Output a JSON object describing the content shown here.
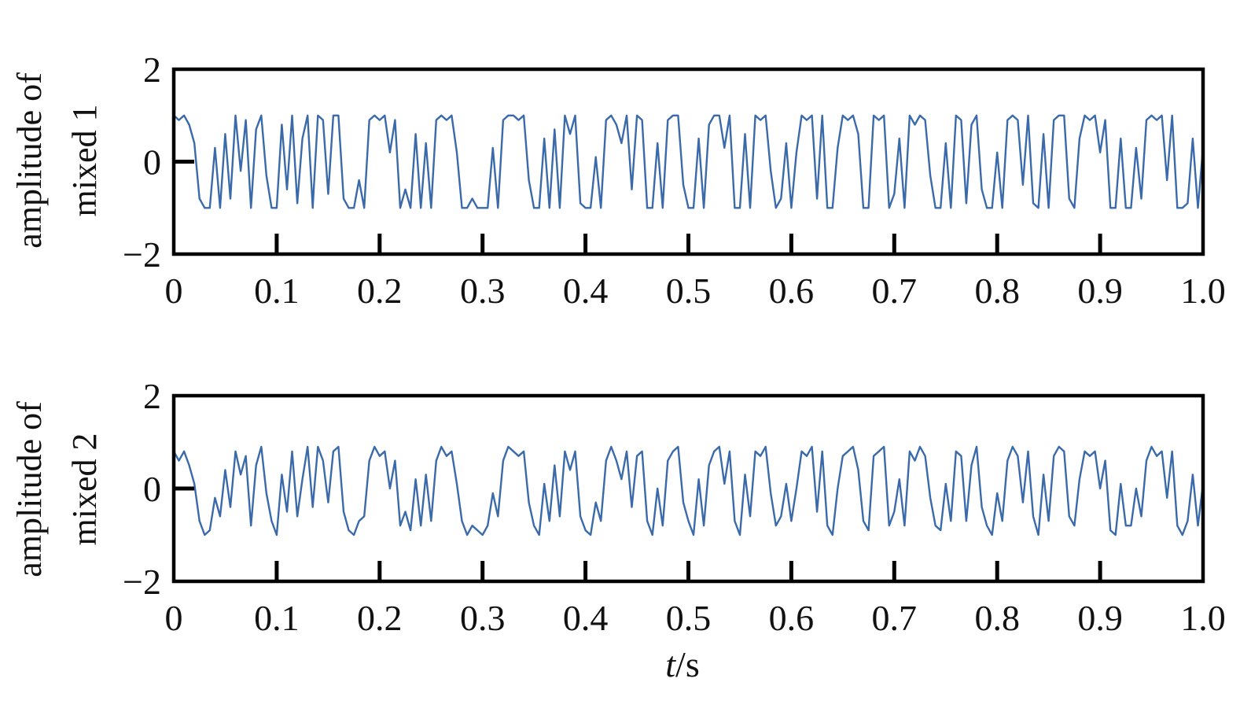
{
  "figure": {
    "xlabel_var": "t",
    "xlabel_unit": "/s"
  },
  "chart_data": [
    {
      "type": "line",
      "ylabel": [
        "amplitude of",
        "mixed 1"
      ],
      "xlim": [
        0,
        1.0
      ],
      "ylim": [
        -2,
        2
      ],
      "xticks": [
        0,
        0.1,
        0.2,
        0.3,
        0.4,
        0.5,
        0.6,
        0.7,
        0.8,
        0.9,
        1.0
      ],
      "xticklabels": [
        "0",
        "0.1",
        "0.2",
        "0.3",
        "0.4",
        "0.5",
        "0.6",
        "0.7",
        "0.8",
        "0.9",
        "1.0"
      ],
      "yticks": [
        -2,
        0,
        2
      ],
      "yticklabels": [
        "−2",
        "0",
        "2"
      ],
      "color": "#3a6aaa",
      "series": [
        {
          "x": [
            0,
            0.005,
            0.01,
            0.015,
            0.02,
            0.025,
            0.03,
            0.035,
            0.04,
            0.045,
            0.05,
            0.055,
            0.06,
            0.065,
            0.07,
            0.075,
            0.08,
            0.085,
            0.09,
            0.095,
            0.1,
            0.105,
            0.11,
            0.115,
            0.12,
            0.125,
            0.13,
            0.135,
            0.14,
            0.145,
            0.15,
            0.155,
            0.16,
            0.165,
            0.17,
            0.175,
            0.18,
            0.185,
            0.19,
            0.195,
            0.2,
            0.205,
            0.21,
            0.215,
            0.22,
            0.225,
            0.23,
            0.235,
            0.24,
            0.245,
            0.25,
            0.255,
            0.26,
            0.265,
            0.27,
            0.275,
            0.28,
            0.285,
            0.29,
            0.295,
            0.3,
            0.305,
            0.31,
            0.315,
            0.32,
            0.325,
            0.33,
            0.335,
            0.34,
            0.345,
            0.35,
            0.355,
            0.36,
            0.365,
            0.37,
            0.375,
            0.38,
            0.385,
            0.39,
            0.395,
            0.4,
            0.405,
            0.41,
            0.415,
            0.42,
            0.425,
            0.43,
            0.435,
            0.44,
            0.445,
            0.45,
            0.455,
            0.46,
            0.465,
            0.47,
            0.475,
            0.48,
            0.485,
            0.49,
            0.495,
            0.5,
            0.505,
            0.51,
            0.515,
            0.52,
            0.525,
            0.53,
            0.535,
            0.54,
            0.545,
            0.55,
            0.555,
            0.56,
            0.565,
            0.57,
            0.575,
            0.58,
            0.585,
            0.59,
            0.595,
            0.6,
            0.605,
            0.61,
            0.615,
            0.62,
            0.625,
            0.63,
            0.635,
            0.64,
            0.645,
            0.65,
            0.655,
            0.66,
            0.665,
            0.67,
            0.675,
            0.68,
            0.685,
            0.69,
            0.695,
            0.7,
            0.705,
            0.71,
            0.715,
            0.72,
            0.725,
            0.73,
            0.735,
            0.74,
            0.745,
            0.75,
            0.755,
            0.76,
            0.765,
            0.77,
            0.775,
            0.78,
            0.785,
            0.79,
            0.795,
            0.8,
            0.805,
            0.81,
            0.815,
            0.82,
            0.825,
            0.83,
            0.835,
            0.84,
            0.845,
            0.85,
            0.855,
            0.86,
            0.865,
            0.87,
            0.875,
            0.88,
            0.885,
            0.89,
            0.895,
            0.9,
            0.905,
            0.91,
            0.915,
            0.92,
            0.925,
            0.93,
            0.935,
            0.94,
            0.945,
            0.95,
            0.955,
            0.96,
            0.965,
            0.97,
            0.975,
            0.98,
            0.985,
            0.99,
            0.995,
            1.0
          ],
          "y": [
            1.0,
            0.9,
            1.0,
            0.8,
            0.4,
            -0.8,
            -1.0,
            -1.0,
            0.3,
            -1.0,
            0.6,
            -0.8,
            1.0,
            -0.2,
            0.9,
            -1.0,
            0.7,
            1.0,
            -0.3,
            -1.0,
            -1.0,
            0.8,
            -0.6,
            1.0,
            -0.9,
            0.5,
            1.0,
            -1.0,
            1.0,
            0.9,
            -0.7,
            1.0,
            1.0,
            -0.8,
            -1.0,
            -1.0,
            -0.4,
            -1.0,
            0.9,
            1.0,
            0.9,
            1.0,
            0.2,
            0.9,
            -1.0,
            -0.6,
            -1.0,
            0.6,
            -1.0,
            0.4,
            -1.0,
            0.9,
            1.0,
            0.9,
            1.0,
            0.2,
            -1.0,
            -1.0,
            -0.8,
            -1.0,
            -1.0,
            -1.0,
            0.3,
            -1.0,
            0.9,
            1.0,
            1.0,
            0.9,
            1.0,
            -0.4,
            -1.0,
            -1.0,
            0.5,
            -1.0,
            0.7,
            -1.0,
            1.0,
            0.6,
            1.0,
            -0.9,
            -1.0,
            -1.0,
            0.1,
            -1.0,
            0.9,
            1.0,
            0.8,
            0.4,
            1.0,
            -0.6,
            1.0,
            0.9,
            -1.0,
            -1.0,
            0.4,
            -1.0,
            0.9,
            1.0,
            1.0,
            -0.5,
            -1.0,
            -1.0,
            0.5,
            -1.0,
            0.8,
            1.0,
            1.0,
            0.3,
            1.0,
            -1.0,
            -1.0,
            0.6,
            -1.0,
            1.0,
            0.9,
            1.0,
            -0.2,
            -1.0,
            -0.8,
            0.4,
            -1.0,
            0.2,
            1.0,
            0.9,
            1.0,
            -0.8,
            1.0,
            -1.0,
            -1.0,
            0.3,
            1.0,
            0.9,
            1.0,
            0.6,
            -1.0,
            -1.0,
            1.0,
            0.9,
            1.0,
            -1.0,
            -0.7,
            0.5,
            -1.0,
            1.0,
            0.8,
            1.0,
            0.9,
            -0.3,
            -1.0,
            -1.0,
            0.4,
            -1.0,
            1.0,
            0.9,
            -0.9,
            0.8,
            1.0,
            -0.6,
            -1.0,
            -1.0,
            0.2,
            -1.0,
            0.9,
            1.0,
            0.9,
            -0.5,
            1.0,
            -0.9,
            -1.0,
            0.6,
            -1.0,
            0.9,
            1.0,
            1.0,
            -0.8,
            -1.0,
            0.5,
            1.0,
            0.9,
            1.0,
            0.2,
            0.9,
            -1.0,
            -1.0,
            0.5,
            -1.0,
            -1.0,
            0.3,
            -0.8,
            0.9,
            1.0,
            0.9,
            1.0,
            -0.4,
            1.0,
            -1.0,
            -1.0,
            -0.9,
            0.5,
            -1.0,
            0.3
          ]
        }
      ]
    },
    {
      "type": "line",
      "ylabel": [
        "amplitude of",
        "mixed 2"
      ],
      "xlim": [
        0,
        1.0
      ],
      "ylim": [
        -2,
        2
      ],
      "xticks": [
        0,
        0.1,
        0.2,
        0.3,
        0.4,
        0.5,
        0.6,
        0.7,
        0.8,
        0.9,
        1.0
      ],
      "xticklabels": [
        "0",
        "0.1",
        "0.2",
        "0.3",
        "0.4",
        "0.5",
        "0.6",
        "0.7",
        "0.8",
        "0.9",
        "1.0"
      ],
      "yticks": [
        -2,
        0,
        2
      ],
      "yticklabels": [
        "−2",
        "0",
        "2"
      ],
      "color": "#3a6aaa",
      "series": [
        {
          "x": [
            0,
            0.005,
            0.01,
            0.015,
            0.02,
            0.025,
            0.03,
            0.035,
            0.04,
            0.045,
            0.05,
            0.055,
            0.06,
            0.065,
            0.07,
            0.075,
            0.08,
            0.085,
            0.09,
            0.095,
            0.1,
            0.105,
            0.11,
            0.115,
            0.12,
            0.125,
            0.13,
            0.135,
            0.14,
            0.145,
            0.15,
            0.155,
            0.16,
            0.165,
            0.17,
            0.175,
            0.18,
            0.185,
            0.19,
            0.195,
            0.2,
            0.205,
            0.21,
            0.215,
            0.22,
            0.225,
            0.23,
            0.235,
            0.24,
            0.245,
            0.25,
            0.255,
            0.26,
            0.265,
            0.27,
            0.275,
            0.28,
            0.285,
            0.29,
            0.295,
            0.3,
            0.305,
            0.31,
            0.315,
            0.32,
            0.325,
            0.33,
            0.335,
            0.34,
            0.345,
            0.35,
            0.355,
            0.36,
            0.365,
            0.37,
            0.375,
            0.38,
            0.385,
            0.39,
            0.395,
            0.4,
            0.405,
            0.41,
            0.415,
            0.42,
            0.425,
            0.43,
            0.435,
            0.44,
            0.445,
            0.45,
            0.455,
            0.46,
            0.465,
            0.47,
            0.475,
            0.48,
            0.485,
            0.49,
            0.495,
            0.5,
            0.505,
            0.51,
            0.515,
            0.52,
            0.525,
            0.53,
            0.535,
            0.54,
            0.545,
            0.55,
            0.555,
            0.56,
            0.565,
            0.57,
            0.575,
            0.58,
            0.585,
            0.59,
            0.595,
            0.6,
            0.605,
            0.61,
            0.615,
            0.62,
            0.625,
            0.63,
            0.635,
            0.64,
            0.645,
            0.65,
            0.655,
            0.66,
            0.665,
            0.67,
            0.675,
            0.68,
            0.685,
            0.69,
            0.695,
            0.7,
            0.705,
            0.71,
            0.715,
            0.72,
            0.725,
            0.73,
            0.735,
            0.74,
            0.745,
            0.75,
            0.755,
            0.76,
            0.765,
            0.77,
            0.775,
            0.78,
            0.785,
            0.79,
            0.795,
            0.8,
            0.805,
            0.81,
            0.815,
            0.82,
            0.825,
            0.83,
            0.835,
            0.84,
            0.845,
            0.85,
            0.855,
            0.86,
            0.865,
            0.87,
            0.875,
            0.88,
            0.885,
            0.89,
            0.895,
            0.9,
            0.905,
            0.91,
            0.915,
            0.92,
            0.925,
            0.93,
            0.935,
            0.94,
            0.945,
            0.95,
            0.955,
            0.96,
            0.965,
            0.97,
            0.975,
            0.98,
            0.985,
            0.99,
            0.995,
            1.0
          ],
          "y": [
            0.8,
            0.6,
            0.8,
            0.5,
            0.1,
            -0.7,
            -1.0,
            -0.9,
            -0.2,
            -0.6,
            0.4,
            -0.4,
            0.8,
            0.3,
            0.7,
            -0.8,
            0.5,
            0.9,
            -0.1,
            -0.7,
            -1.0,
            0.3,
            -0.5,
            0.8,
            -0.6,
            0.2,
            0.9,
            -0.4,
            0.9,
            0.6,
            -0.3,
            0.8,
            0.9,
            -0.5,
            -0.9,
            -1.0,
            -0.7,
            -0.6,
            0.6,
            0.9,
            0.7,
            0.8,
            0.0,
            0.6,
            -0.8,
            -0.5,
            -0.9,
            0.2,
            -0.8,
            0.3,
            -0.7,
            0.6,
            0.9,
            0.7,
            0.8,
            0.1,
            -0.7,
            -1.0,
            -0.8,
            -0.9,
            -1.0,
            -0.8,
            -0.1,
            -0.6,
            0.6,
            0.9,
            0.8,
            0.7,
            0.8,
            -0.3,
            -0.8,
            -1.0,
            0.1,
            -0.7,
            0.5,
            -0.6,
            0.8,
            0.4,
            0.8,
            -0.6,
            -0.9,
            -1.0,
            -0.3,
            -0.7,
            0.6,
            0.9,
            0.6,
            0.2,
            0.8,
            -0.4,
            0.7,
            0.8,
            -0.7,
            -1.0,
            0.0,
            -0.8,
            0.6,
            0.8,
            0.9,
            -0.3,
            -0.7,
            -1.0,
            0.2,
            -0.8,
            0.5,
            0.8,
            0.9,
            0.1,
            0.8,
            -0.7,
            -1.0,
            0.3,
            -0.6,
            0.8,
            0.7,
            0.9,
            -0.1,
            -0.8,
            -0.6,
            0.1,
            -0.7,
            0.0,
            0.8,
            0.7,
            0.9,
            -0.5,
            0.8,
            -0.8,
            -1.0,
            0.0,
            0.7,
            0.8,
            0.9,
            0.4,
            -0.7,
            -0.9,
            0.7,
            0.8,
            0.9,
            -0.8,
            -0.5,
            0.2,
            -0.8,
            0.8,
            0.6,
            0.9,
            0.7,
            -0.2,
            -0.8,
            -0.9,
            0.1,
            -0.7,
            0.8,
            0.7,
            -0.7,
            0.5,
            0.9,
            -0.4,
            -0.8,
            -1.0,
            -0.1,
            -0.7,
            0.6,
            0.9,
            0.7,
            -0.3,
            0.8,
            -0.6,
            -1.0,
            0.3,
            -0.7,
            0.7,
            0.9,
            0.8,
            -0.6,
            -0.8,
            0.2,
            0.8,
            0.7,
            0.8,
            0.0,
            0.6,
            -0.9,
            -1.0,
            0.1,
            -0.8,
            -0.8,
            0.0,
            -0.6,
            0.6,
            0.9,
            0.7,
            0.8,
            -0.2,
            0.8,
            -0.8,
            -1.0,
            -0.7,
            0.3,
            -0.8,
            0.1
          ]
        }
      ]
    }
  ]
}
